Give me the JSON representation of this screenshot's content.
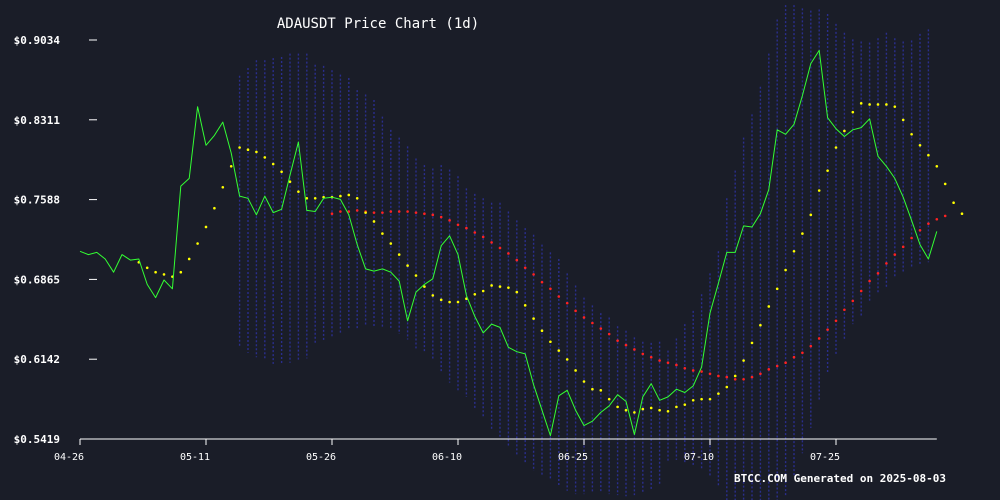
{
  "chart_data": {
    "type": "line",
    "title": "ADAUSDT Price Chart (1d)",
    "footer": "BTCC.COM Generated on 2025-08-03",
    "y_ticks": [
      "$0.9034",
      "$0.8311",
      "$0.7588",
      "$0.6865",
      "$0.6142",
      "$0.5419"
    ],
    "y_tick_values": [
      0.9034,
      0.8311,
      0.7588,
      0.6865,
      0.6142,
      0.5419
    ],
    "x_ticks": [
      "04-26",
      "05-11",
      "05-26",
      "06-10",
      "06-25",
      "07-10",
      "07-25"
    ],
    "x_tick_index": [
      0,
      15,
      30,
      45,
      60,
      75,
      90
    ],
    "ylim": [
      0.5419,
      0.9034
    ],
    "grid": false,
    "colors": {
      "background": "#1a1d28",
      "price": "#33ff33",
      "sma_short": "#ffff00",
      "sma_long": "#ff2222",
      "bands": "#2a2e8c",
      "text": "#ffffff",
      "axis": "#ffffff"
    },
    "series": [
      {
        "key": "price",
        "values": [
          0.712,
          0.709,
          0.711,
          0.705,
          0.693,
          0.709,
          0.704,
          0.705,
          0.682,
          0.67,
          0.686,
          0.678,
          0.771,
          0.778,
          0.843,
          0.808,
          0.817,
          0.829,
          0.801,
          0.762,
          0.76,
          0.745,
          0.762,
          0.747,
          0.75,
          0.781,
          0.811,
          0.749,
          0.748,
          0.76,
          0.761,
          0.759,
          0.745,
          0.718,
          0.696,
          0.694,
          0.696,
          0.693,
          0.685,
          0.649,
          0.675,
          0.682,
          0.687,
          0.717,
          0.726,
          0.709,
          0.672,
          0.653,
          0.638,
          0.646,
          0.643,
          0.625,
          0.621,
          0.619,
          0.591,
          0.568,
          0.545,
          0.581,
          0.586,
          0.568,
          0.554,
          0.558,
          0.566,
          0.572,
          0.582,
          0.576,
          0.546,
          0.58,
          0.592,
          0.577,
          0.58,
          0.587,
          0.584,
          0.59,
          0.607,
          0.656,
          0.683,
          0.711,
          0.711,
          0.735,
          0.734,
          0.746,
          0.768,
          0.822,
          0.818,
          0.827,
          0.853,
          0.882,
          0.894,
          0.833,
          0.823,
          0.816,
          0.822,
          0.824,
          0.832,
          0.798,
          0.789,
          0.778,
          0.761,
          0.74,
          0.718,
          0.705,
          0.73
        ]
      },
      {
        "key": "sma_short",
        "start_index": 7,
        "values": [
          0.702,
          0.697,
          0.693,
          0.691,
          0.689,
          0.693,
          0.705,
          0.719,
          0.734,
          0.751,
          0.77,
          0.789,
          0.806,
          0.804,
          0.802,
          0.797,
          0.791,
          0.784,
          0.775,
          0.766,
          0.76,
          0.76,
          0.761,
          0.761,
          0.762,
          0.763,
          0.76,
          0.747,
          0.739,
          0.728,
          0.719,
          0.709,
          0.699,
          0.69,
          0.68,
          0.672,
          0.668,
          0.666,
          0.666,
          0.669,
          0.673,
          0.676,
          0.681,
          0.68,
          0.679,
          0.675,
          0.663,
          0.651,
          0.64,
          0.63,
          0.622,
          0.614,
          0.604,
          0.594,
          0.587,
          0.586,
          0.578,
          0.571,
          0.568,
          0.566,
          0.569,
          0.57,
          0.568,
          0.567,
          0.571,
          0.573,
          0.577,
          0.578,
          0.578,
          0.583,
          0.589,
          0.599,
          0.613,
          0.629,
          0.645,
          0.662,
          0.678,
          0.695,
          0.712,
          0.728,
          0.745,
          0.767,
          0.785,
          0.806,
          0.821,
          0.838,
          0.846,
          0.845,
          0.845,
          0.845,
          0.843,
          0.831,
          0.818,
          0.808,
          0.799,
          0.789,
          0.773,
          0.756,
          0.746
        ]
      },
      {
        "key": "sma_long",
        "start_index": 30,
        "values": [
          0.746,
          0.748,
          0.748,
          0.749,
          0.748,
          0.747,
          0.747,
          0.748,
          0.748,
          0.748,
          0.747,
          0.746,
          0.745,
          0.743,
          0.74,
          0.736,
          0.733,
          0.729,
          0.725,
          0.72,
          0.715,
          0.71,
          0.704,
          0.697,
          0.691,
          0.684,
          0.678,
          0.671,
          0.665,
          0.658,
          0.652,
          0.647,
          0.642,
          0.637,
          0.631,
          0.627,
          0.623,
          0.619,
          0.616,
          0.613,
          0.611,
          0.609,
          0.606,
          0.604,
          0.603,
          0.601,
          0.599,
          0.598,
          0.596,
          0.596,
          0.598,
          0.601,
          0.605,
          0.608,
          0.611,
          0.616,
          0.62,
          0.626,
          0.633,
          0.641,
          0.649,
          0.659,
          0.667,
          0.676,
          0.685,
          0.692,
          0.701,
          0.709,
          0.716,
          0.724,
          0.731,
          0.737,
          0.741,
          0.744
        ]
      },
      {
        "key": "bands",
        "start_index": 19,
        "upper": [
          0.871,
          0.878,
          0.885,
          0.885,
          0.887,
          0.888,
          0.891,
          0.891,
          0.891,
          0.881,
          0.88,
          0.876,
          0.872,
          0.869,
          0.858,
          0.854,
          0.849,
          0.834,
          0.822,
          0.815,
          0.807,
          0.796,
          0.79,
          0.787,
          0.79,
          0.786,
          0.78,
          0.769,
          0.764,
          0.76,
          0.756,
          0.756,
          0.748,
          0.74,
          0.733,
          0.727,
          0.718,
          0.711,
          0.705,
          0.692,
          0.681,
          0.67,
          0.663,
          0.656,
          0.652,
          0.644,
          0.64,
          0.634,
          0.63,
          0.629,
          0.63,
          0.622,
          0.633,
          0.646,
          0.658,
          0.673,
          0.692,
          0.712,
          0.76,
          0.785,
          0.815,
          0.836,
          0.861,
          0.891,
          0.922,
          0.935,
          0.935,
          0.932,
          0.93,
          0.931,
          0.927,
          0.918,
          0.91,
          0.904,
          0.902,
          0.901,
          0.905,
          0.91,
          0.905,
          0.902,
          0.903,
          0.909,
          0.913
        ],
        "lower": [
          0.625,
          0.62,
          0.616,
          0.614,
          0.61,
          0.609,
          0.611,
          0.613,
          0.615,
          0.628,
          0.63,
          0.634,
          0.637,
          0.641,
          0.642,
          0.645,
          0.644,
          0.643,
          0.641,
          0.637,
          0.632,
          0.624,
          0.62,
          0.613,
          0.602,
          0.593,
          0.585,
          0.58,
          0.57,
          0.562,
          0.551,
          0.544,
          0.536,
          0.528,
          0.521,
          0.513,
          0.508,
          0.505,
          0.5,
          0.495,
          0.492,
          0.492,
          0.494,
          0.494,
          0.492,
          0.491,
          0.49,
          0.491,
          0.493,
          0.496,
          0.501,
          0.521,
          0.523,
          0.52,
          0.518,
          0.514,
          0.508,
          0.5,
          0.48,
          0.475,
          0.468,
          0.468,
          0.47,
          0.473,
          0.478,
          0.491,
          0.509,
          0.529,
          0.552,
          0.577,
          0.602,
          0.618,
          0.631,
          0.646,
          0.653,
          0.667,
          0.673,
          0.679,
          0.688,
          0.692,
          0.698,
          0.7,
          0.702
        ]
      }
    ]
  }
}
